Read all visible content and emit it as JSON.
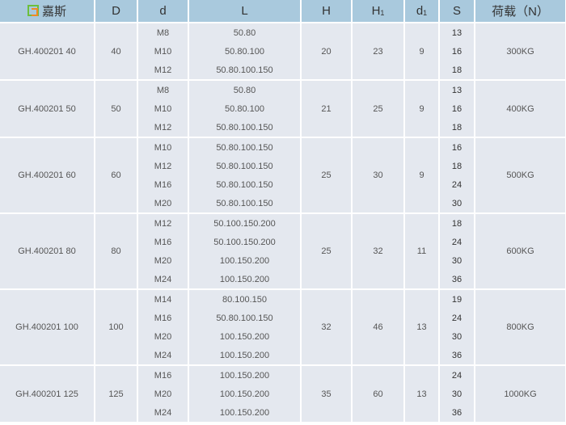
{
  "header": {
    "brand": "嘉斯",
    "columns": [
      "D",
      "d",
      "L",
      "H",
      "H",
      "d",
      "S",
      "荷载（N）"
    ],
    "subscripts": {
      "H1": "1",
      "d1": "1"
    }
  },
  "colors": {
    "header_bg": "#a9c9dd",
    "body_bg": "#e4e8ef",
    "logo_green": "#6cbf3c",
    "logo_orange": "#f08a24"
  },
  "groups": [
    {
      "model": "GH.400201  40",
      "D": "40",
      "H": "20",
      "H1": "23",
      "d1": "9",
      "load": "300KG",
      "rows": [
        {
          "d": "M8",
          "L": "50.80",
          "S": "13"
        },
        {
          "d": "M10",
          "L": "50.80.100",
          "S": "16"
        },
        {
          "d": "M12",
          "L": "50.80.100.150",
          "S": "18"
        }
      ]
    },
    {
      "model": "GH.400201  50",
      "D": "50",
      "H": "21",
      "H1": "25",
      "d1": "9",
      "load": "400KG",
      "rows": [
        {
          "d": "M8",
          "L": "50.80",
          "S": "13"
        },
        {
          "d": "M10",
          "L": "50.80.100",
          "S": "16"
        },
        {
          "d": "M12",
          "L": "50.80.100.150",
          "S": "18"
        }
      ]
    },
    {
      "model": "GH.400201  60",
      "D": "60",
      "H": "25",
      "H1": "30",
      "d1": "9",
      "load": "500KG",
      "rows": [
        {
          "d": "M10",
          "L": "50.80.100.150",
          "S": "16"
        },
        {
          "d": "M12",
          "L": "50.80.100.150",
          "S": "18"
        },
        {
          "d": "M16",
          "L": "50.80.100.150",
          "S": "24"
        },
        {
          "d": "M20",
          "L": "50.80.100.150",
          "S": "30"
        }
      ]
    },
    {
      "model": "GH.400201  80",
      "D": "80",
      "H": "25",
      "H1": "32",
      "d1": "11",
      "load": "600KG",
      "rows": [
        {
          "d": "M12",
          "L": "50.100.150.200",
          "S": "18"
        },
        {
          "d": "M16",
          "L": "50.100.150.200",
          "S": "24"
        },
        {
          "d": "M20",
          "L": "100.150.200",
          "S": "30"
        },
        {
          "d": "M24",
          "L": "100.150.200",
          "S": "36"
        }
      ]
    },
    {
      "model": "GH.400201  100",
      "D": "100",
      "H": "32",
      "H1": "46",
      "d1": "13",
      "load": "800KG",
      "rows": [
        {
          "d": "M14",
          "L": "80.100.150",
          "S": "19"
        },
        {
          "d": "M16",
          "L": "50.80.100.150",
          "S": "24"
        },
        {
          "d": "M20",
          "L": "100.150.200",
          "S": "30"
        },
        {
          "d": "M24",
          "L": "100.150.200",
          "S": "36"
        }
      ]
    },
    {
      "model": "GH.400201  125",
      "D": "125",
      "H": "35",
      "H1": "60",
      "d1": "13",
      "load": "1000KG",
      "rows": [
        {
          "d": "M16",
          "L": "100.150.200",
          "S": "24"
        },
        {
          "d": "M20",
          "L": "100.150.200",
          "S": "30"
        },
        {
          "d": "M24",
          "L": "100.150.200",
          "S": "36"
        }
      ]
    }
  ]
}
